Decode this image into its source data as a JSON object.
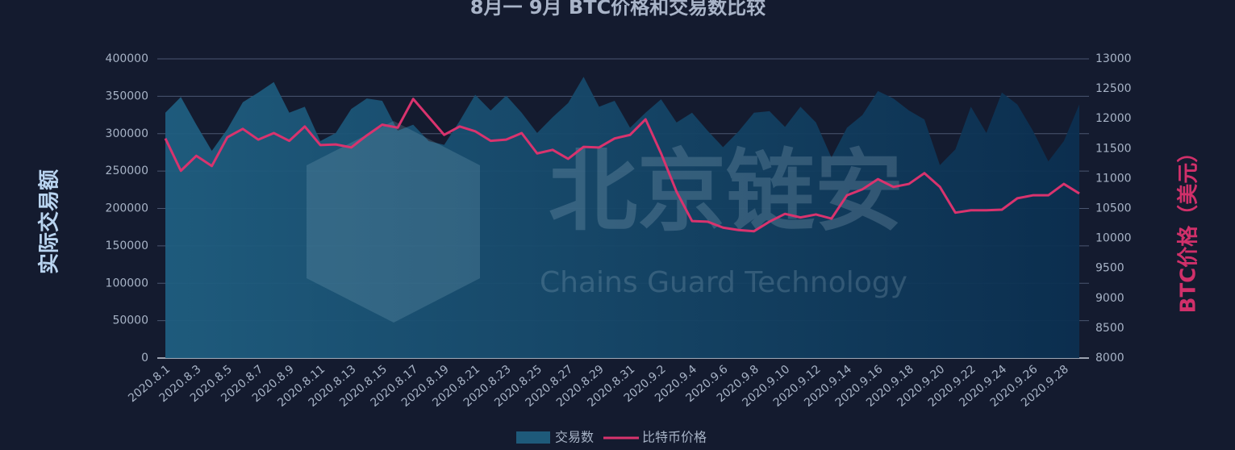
{
  "chart_data": {
    "type": "area-line",
    "title": "8月一 9月 BTC价格和交易数比较",
    "watermark": {
      "title": "北京链安",
      "subtitle": "Chains Guard Technology"
    },
    "y_label": "实际交易额",
    "y2_label": "BTC价格（美元）",
    "categories": [
      "2020.8.1",
      null,
      "2020.8.3",
      null,
      "2020.8.5",
      null,
      "2020.8.7",
      null,
      "2020.8.9",
      null,
      "2020.8.11",
      null,
      "2020.8.13",
      null,
      "2020.8.15",
      null,
      "2020.8.17",
      null,
      "2020.8.19",
      null,
      "2020.8.21",
      null,
      "2020.8.23",
      null,
      "2020.8.25",
      null,
      "2020.8.27",
      null,
      "2020.8.29",
      null,
      "2020.8.31",
      null,
      "2020.9.2",
      null,
      "2020.9.4",
      null,
      "2020.9.6",
      null,
      "2020.9.8",
      null,
      "2020.9.10",
      null,
      "2020.9.12",
      null,
      "2020.9.14",
      null,
      "2020.9.16",
      null,
      "2020.9.18",
      null,
      "2020.9.20",
      null,
      "2020.9.22",
      null,
      "2020.9.24",
      null,
      "2020.9.26",
      null,
      "2020.9.28",
      null
    ],
    "series": [
      {
        "name": "交易数",
        "type": "area",
        "color": "#1e5a7a",
        "axis": "y",
        "values": [
          328000,
          349000,
          312000,
          277000,
          306000,
          342000,
          355000,
          369000,
          328000,
          336000,
          290000,
          301000,
          333000,
          347000,
          344000,
          304000,
          312000,
          290000,
          285000,
          317000,
          352000,
          331000,
          351000,
          328000,
          301000,
          322000,
          341000,
          376000,
          336000,
          344000,
          308000,
          328000,
          346000,
          315000,
          328000,
          304000,
          282000,
          303000,
          328000,
          330000,
          309000,
          336000,
          315000,
          268000,
          308000,
          325000,
          357000,
          347000,
          331000,
          319000,
          258000,
          279000,
          336000,
          301000,
          355000,
          339000,
          304000,
          263000,
          290000,
          339000
        ]
      },
      {
        "name": "比特币价格",
        "type": "line",
        "color": "#d9336e",
        "axis": "y2",
        "values": [
          11670,
          11130,
          11380,
          11210,
          11690,
          11830,
          11650,
          11760,
          11630,
          11870,
          11560,
          11570,
          11520,
          11720,
          11900,
          11850,
          12330,
          12030,
          11730,
          11870,
          11790,
          11630,
          11650,
          11760,
          11420,
          11480,
          11330,
          11530,
          11520,
          11670,
          11730,
          11990,
          11420,
          10780,
          10290,
          10280,
          10180,
          10140,
          10120,
          10280,
          10410,
          10350,
          10400,
          10330,
          10720,
          10820,
          10990,
          10860,
          10910,
          11090,
          10860,
          10430,
          10470,
          10470,
          10480,
          10670,
          10720,
          10720,
          10910,
          10750
        ]
      }
    ],
    "ylim": [
      0,
      400000
    ],
    "yticks": [
      0,
      50000,
      100000,
      150000,
      200000,
      250000,
      300000,
      350000,
      400000
    ],
    "y2lim": [
      8000,
      13000
    ],
    "y2ticks": [
      8000,
      8500,
      9000,
      9500,
      10000,
      10500,
      11000,
      11500,
      12000,
      12500,
      13000
    ],
    "grid": true,
    "legend": "bottom"
  }
}
